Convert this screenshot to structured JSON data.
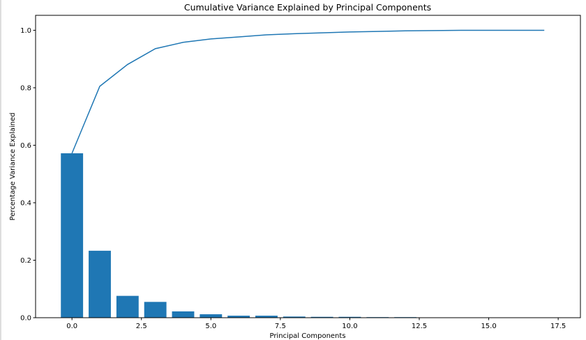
{
  "chart_data": {
    "type": "bar",
    "title": "Cumulative Variance Explained by Principal Components",
    "xlabel": "Principal Components",
    "ylabel": "Percentage Variance Explained",
    "x": [
      0,
      1,
      2,
      3,
      4,
      5,
      6,
      7,
      8,
      9,
      10,
      11,
      12,
      13,
      14,
      15,
      16,
      17
    ],
    "series": [
      {
        "type": "bar",
        "values": [
          0.572,
          0.233,
          0.076,
          0.055,
          0.022,
          0.012,
          0.007,
          0.007,
          0.004,
          0.003,
          0.003,
          0.002,
          0.002,
          0.001,
          0.001,
          0.0,
          0.0,
          0.0
        ]
      },
      {
        "type": "line",
        "values": [
          0.572,
          0.805,
          0.881,
          0.936,
          0.958,
          0.97,
          0.977,
          0.984,
          0.988,
          0.991,
          0.994,
          0.996,
          0.998,
          0.999,
          1.0,
          1.0,
          1.0,
          1.0
        ]
      }
    ],
    "xlim": [
      -1.31,
      18.3
    ],
    "ylim": [
      0,
      1.052
    ],
    "xticks": [
      0.0,
      2.5,
      5.0,
      7.5,
      10.0,
      12.5,
      15.0,
      17.5
    ],
    "xtick_labels": [
      "0.0",
      "2.5",
      "5.0",
      "7.5",
      "10.0",
      "12.5",
      "15.0",
      "17.5"
    ],
    "yticks": [
      0.0,
      0.2,
      0.4,
      0.6,
      0.8,
      1.0
    ],
    "ytick_labels": [
      "0.0",
      "0.2",
      "0.4",
      "0.6",
      "0.8",
      "1.0"
    ],
    "grid": false,
    "colors": {
      "bar": "#1f77b4",
      "line": "#1f77b4"
    }
  }
}
